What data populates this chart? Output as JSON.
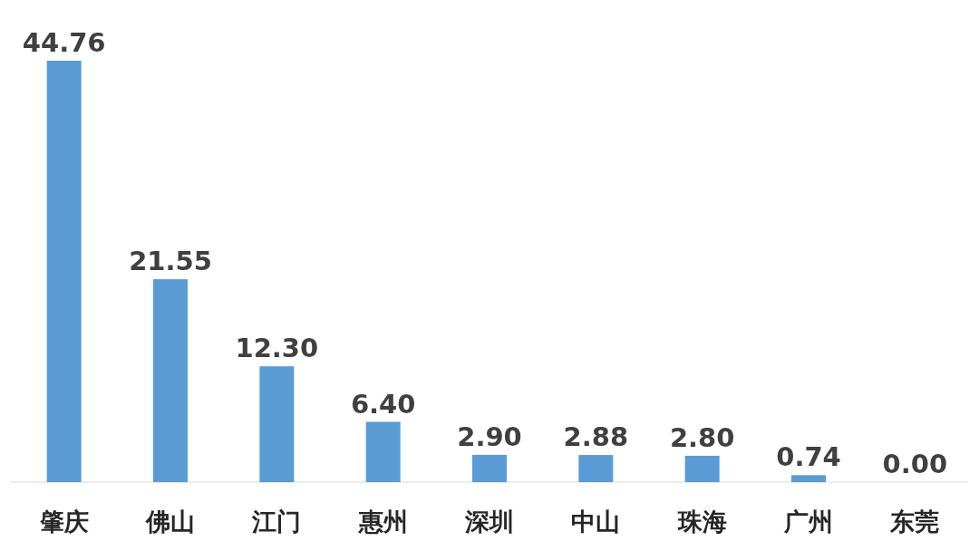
{
  "chart_data": {
    "type": "bar",
    "categories": [
      "肇庆",
      "佛山",
      "江门",
      "惠州",
      "深圳",
      "中山",
      "珠海",
      "广州",
      "东莞"
    ],
    "values": [
      44.76,
      21.55,
      12.3,
      6.4,
      2.9,
      2.88,
      2.8,
      0.74,
      0
    ],
    "value_labels": [
      "44.76",
      "21.55",
      "12.30",
      "6.40",
      "2.90",
      "2.88",
      "2.80",
      "0.74",
      "0.00"
    ],
    "color": "#5b9bd5"
  }
}
